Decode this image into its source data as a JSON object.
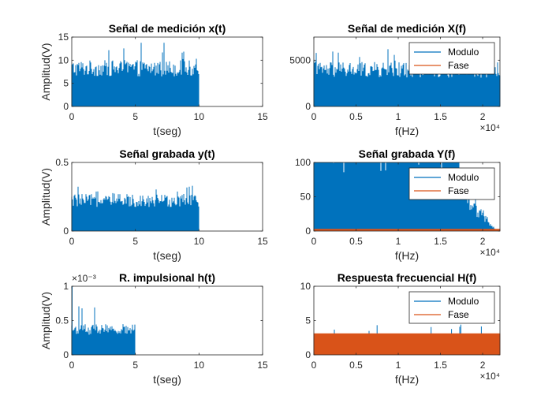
{
  "colors": {
    "modulo": "#0072BD",
    "fase": "#D95319",
    "axis": "#262626",
    "background": "#ffffff"
  },
  "chart_data": [
    {
      "type": "area",
      "title": "Señal de medición x(t)",
      "xlabel": "t(seg)",
      "ylabel": "Amplitud(V)",
      "xlim": [
        0,
        15
      ],
      "ylim": [
        0,
        15
      ],
      "xticks": [
        "0",
        "5",
        "10",
        "15"
      ],
      "yticks": [
        "0",
        "5",
        "10",
        "15"
      ],
      "exponent": "",
      "series": [
        {
          "name": "",
          "color": "#0072BD",
          "x": [
            0,
            10
          ],
          "typical_peak": 10,
          "max_peak": 14
        }
      ]
    },
    {
      "type": "area",
      "title": "Señal de medición X(f)",
      "xlabel": "f(Hz)",
      "ylabel": "",
      "xlim": [
        0,
        22050
      ],
      "ylim": [
        0,
        7500
      ],
      "xticks": [
        "0",
        "0.5",
        "1",
        "1.5",
        "2"
      ],
      "yticks": [
        "0",
        "5000"
      ],
      "exponent": "×10⁴",
      "legend": {
        "placement": "top-right",
        "entries": [
          "Modulo",
          "Fase"
        ]
      },
      "series": [
        {
          "name": "Modulo",
          "color": "#0072BD",
          "x": [
            0,
            22050
          ],
          "typical_peak": 4800,
          "max_peak": 6200
        },
        {
          "name": "Fase",
          "color": "#D95319",
          "x": [
            0,
            22050
          ],
          "typical_peak": 3.14,
          "max_peak": 3.14
        }
      ]
    },
    {
      "type": "area",
      "title": "Señal grabada y(t)",
      "xlabel": "t(seg)",
      "ylabel": "Amplitud(V)",
      "xlim": [
        0,
        15
      ],
      "ylim": [
        0,
        0.5
      ],
      "xticks": [
        "0",
        "5",
        "10",
        "15"
      ],
      "yticks": [
        "0",
        "0.5"
      ],
      "exponent": "",
      "series": [
        {
          "name": "",
          "color": "#0072BD",
          "x": [
            0,
            10
          ],
          "typical_peak": 0.27,
          "max_peak": 0.34
        }
      ]
    },
    {
      "type": "area",
      "title": "Señal grabada Y(f)",
      "xlabel": "f(Hz)",
      "ylabel": "",
      "xlim": [
        0,
        22050
      ],
      "ylim": [
        0,
        100
      ],
      "xticks": [
        "0",
        "0.5",
        "1",
        "1.5",
        "2"
      ],
      "yticks": [
        "0",
        "50",
        "100"
      ],
      "exponent": "×10⁴",
      "legend": {
        "placement": "top-right",
        "entries": [
          "Modulo",
          "Fase"
        ]
      },
      "series": [
        {
          "name": "Modulo",
          "color": "#0072BD",
          "x": [
            0,
            22050
          ],
          "typical_peak": 100,
          "max_peak": 100
        },
        {
          "name": "Fase",
          "color": "#D95319",
          "x": [
            0,
            22050
          ],
          "typical_peak": 3.14,
          "max_peak": 3.14
        }
      ]
    },
    {
      "type": "area",
      "title": "R. impulsional h(t)",
      "xlabel": "t(seg)",
      "ylabel": "Amplitud(V)",
      "xlim": [
        0,
        15
      ],
      "ylim": [
        0,
        0.001
      ],
      "xticks": [
        "0",
        "5",
        "10",
        "15"
      ],
      "yticks": [
        "0",
        "0.5",
        "1"
      ],
      "exponent": "×10⁻³",
      "series": [
        {
          "name": "",
          "color": "#0072BD",
          "x": [
            0,
            5
          ],
          "typical_peak": 0.00045,
          "max_peak": 0.001
        }
      ]
    },
    {
      "type": "area",
      "title": "Respuesta frecuencial H(f)",
      "xlabel": "f(Hz)",
      "ylabel": "",
      "xlim": [
        0,
        22050
      ],
      "ylim": [
        0,
        10
      ],
      "xticks": [
        "0",
        "0.5",
        "1",
        "1.5",
        "2"
      ],
      "yticks": [
        "0",
        "5",
        "10"
      ],
      "exponent": "×10⁴",
      "legend": {
        "placement": "top-right",
        "entries": [
          "Modulo",
          "Fase"
        ]
      },
      "series": [
        {
          "name": "Modulo",
          "color": "#0072BD",
          "x": [
            0,
            22050
          ],
          "typical_peak": 0.6,
          "max_peak": 4.6
        },
        {
          "name": "Fase",
          "color": "#D95319",
          "x": [
            0,
            22050
          ],
          "typical_peak": 3.14,
          "max_peak": 3.14
        }
      ]
    }
  ]
}
